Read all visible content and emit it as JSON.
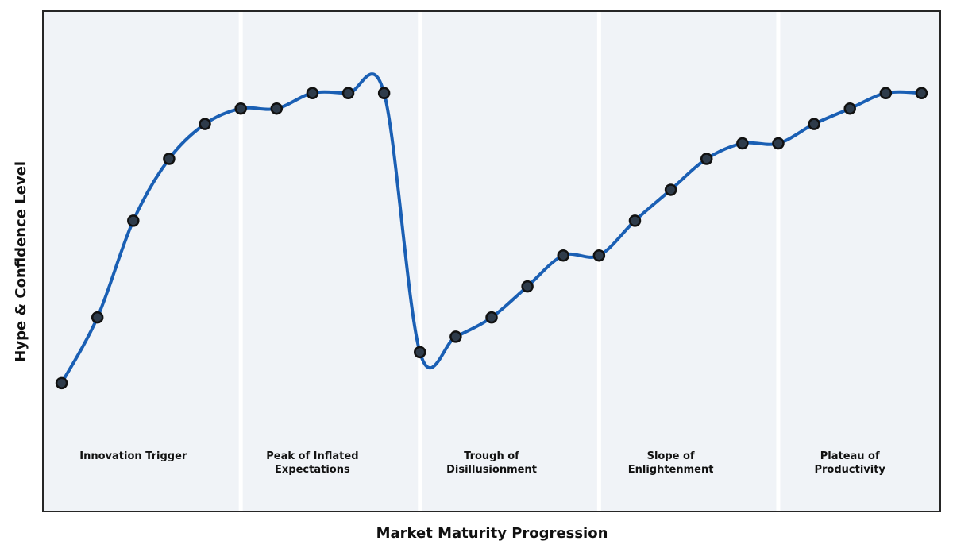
{
  "figure": {
    "xlabel": "Market Maturity Progression",
    "ylabel": "Hype & Confidence Level"
  },
  "chart_data": {
    "type": "line",
    "title": "",
    "xlabel": "Market Maturity Progression",
    "ylabel": "Hype & Confidence Level",
    "x": [
      0,
      1,
      2,
      3,
      4,
      5,
      6,
      7,
      8,
      9,
      10,
      11,
      12,
      13,
      14,
      15,
      16,
      17,
      18,
      19,
      20,
      21,
      22,
      23,
      24
    ],
    "values": [
      20,
      37,
      62,
      78,
      87,
      91,
      91,
      95,
      95,
      95,
      28,
      32,
      37,
      45,
      53,
      53,
      62,
      70,
      78,
      82,
      82,
      87,
      91,
      95,
      95
    ],
    "xlim": [
      -0.5,
      24.5
    ],
    "ylim": [
      -13,
      116
    ],
    "grid": false,
    "legend_position": "none",
    "axis_ticks_visible": false,
    "smoothing": "spline",
    "phase_boundaries_x": [
      5,
      10,
      15,
      20
    ],
    "phases": [
      {
        "label_lines": [
          "Innovation Trigger"
        ],
        "label_x": 2
      },
      {
        "label_lines": [
          "Peak of Inflated",
          "Expectations"
        ],
        "label_x": 7
      },
      {
        "label_lines": [
          "Trough of",
          "Disillusionment"
        ],
        "label_x": 12
      },
      {
        "label_lines": [
          "Slope of",
          "Enlightenment"
        ],
        "label_x": 17
      },
      {
        "label_lines": [
          "Plateau of",
          "Productivity"
        ],
        "label_x": 22
      }
    ],
    "colors": {
      "line": "#1a5fb4",
      "marker_fill": "#2e3b4a",
      "marker_edge": "#111111",
      "plot_background": "#f0f3f7",
      "phase_divider": "#ffffff",
      "frame_border": "#262626",
      "text": "#111111",
      "figure_background": "#ffffff"
    }
  }
}
